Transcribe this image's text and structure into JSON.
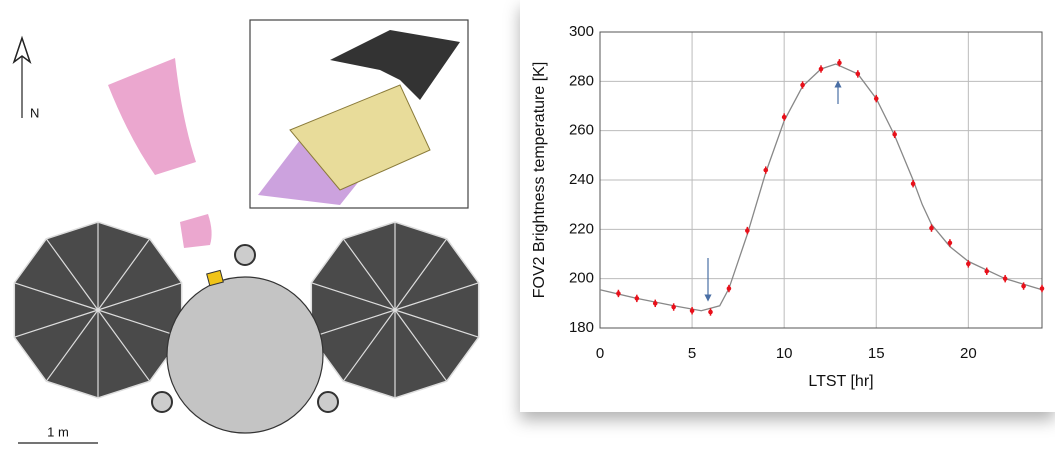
{
  "diagram": {
    "north_label": "N",
    "scale_label": "1 m"
  },
  "chart_data": {
    "type": "scatter",
    "xlabel": "LTST [hr]",
    "ylabel": "FOV2 Brightness temperature [K]",
    "x": [
      1,
      2,
      3,
      4,
      5,
      6,
      7,
      8,
      9,
      10,
      11,
      12,
      13,
      14,
      15,
      16,
      17,
      18,
      19,
      20,
      21,
      22,
      23,
      24
    ],
    "values": [
      194,
      192,
      190,
      188.5,
      187,
      186.5,
      196,
      219.5,
      244,
      265.5,
      278.5,
      285,
      287.5,
      283,
      273,
      258.5,
      238.5,
      220.5,
      214.5,
      206,
      203,
      200,
      197,
      196
    ],
    "errors": [
      1.5,
      1.5,
      1.5,
      1.5,
      1.5,
      1.5,
      1.5,
      1.5,
      1.5,
      1.5,
      1.5,
      1.5,
      1.5,
      1.5,
      1.5,
      1.5,
      1.5,
      1.5,
      1.5,
      1.5,
      1.5,
      1.5,
      1.5,
      1.5
    ],
    "color": "#e8101a",
    "curve": {
      "x": [
        0,
        2,
        4,
        5.5,
        6.5,
        7,
        8,
        9,
        10,
        11,
        12,
        12.8,
        14,
        15,
        16,
        17,
        17.5,
        18,
        19,
        20,
        22,
        24
      ],
      "values": [
        195.5,
        192,
        189,
        187,
        189,
        196,
        218,
        243,
        264,
        278,
        285,
        287,
        283,
        273,
        258,
        240,
        230,
        222,
        213,
        207,
        200,
        195.5
      ],
      "color": "#888888"
    },
    "xlim": [
      0,
      24
    ],
    "xticks": [
      0,
      5,
      10,
      15,
      20
    ],
    "ylim": [
      180,
      300
    ],
    "yticks": [
      180,
      200,
      220,
      240,
      260,
      280,
      300
    ],
    "grid": true
  }
}
